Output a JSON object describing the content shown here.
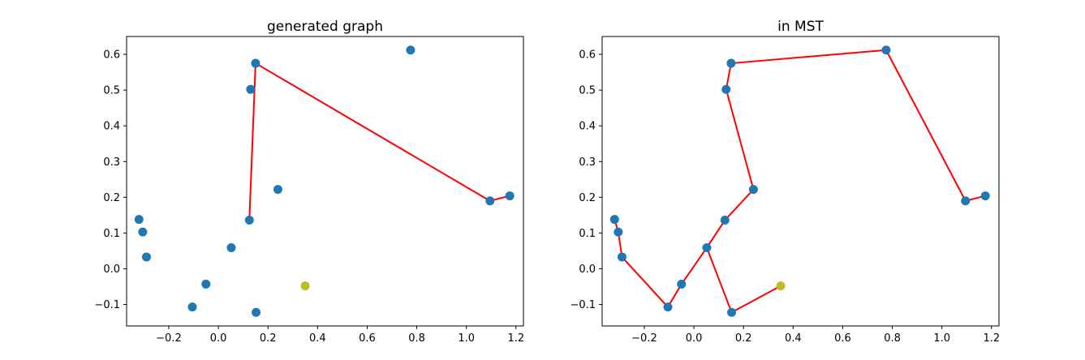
{
  "chart_data": [
    {
      "type": "scatter",
      "title": "generated graph",
      "xlabel": "",
      "ylabel": "",
      "xlim": [
        -0.37,
        1.23
      ],
      "ylim": [
        -0.16,
        0.65
      ],
      "xticks": [
        -0.2,
        0.0,
        0.2,
        0.4,
        0.6,
        0.8,
        1.0,
        1.2
      ],
      "yticks": [
        -0.1,
        0.0,
        0.1,
        0.2,
        0.3,
        0.4,
        0.5,
        0.6
      ],
      "xtick_labels": [
        "−0.2",
        "0.0",
        "0.2",
        "0.4",
        "0.6",
        "0.8",
        "1.0",
        "1.2"
      ],
      "ytick_labels": [
        "−0.1",
        "0.0",
        "0.1",
        "0.2",
        "0.3",
        "0.4",
        "0.5",
        "0.6"
      ],
      "points": [
        {
          "x": 0.15,
          "y": 0.575,
          "color": "#1f77b4"
        },
        {
          "x": 0.13,
          "y": 0.502,
          "color": "#1f77b4"
        },
        {
          "x": 0.775,
          "y": 0.612,
          "color": "#1f77b4"
        },
        {
          "x": 0.24,
          "y": 0.222,
          "color": "#1f77b4"
        },
        {
          "x": 1.095,
          "y": 0.19,
          "color": "#1f77b4"
        },
        {
          "x": 1.175,
          "y": 0.204,
          "color": "#1f77b4"
        },
        {
          "x": 0.125,
          "y": 0.136,
          "color": "#1f77b4"
        },
        {
          "x": -0.32,
          "y": 0.138,
          "color": "#1f77b4"
        },
        {
          "x": -0.305,
          "y": 0.103,
          "color": "#1f77b4"
        },
        {
          "x": -0.29,
          "y": 0.033,
          "color": "#1f77b4"
        },
        {
          "x": 0.052,
          "y": 0.059,
          "color": "#1f77b4"
        },
        {
          "x": -0.05,
          "y": -0.043,
          "color": "#1f77b4"
        },
        {
          "x": -0.105,
          "y": -0.107,
          "color": "#1f77b4"
        },
        {
          "x": 0.152,
          "y": -0.122,
          "color": "#1f77b4"
        },
        {
          "x": 0.35,
          "y": -0.048,
          "color": "#bcbd22"
        }
      ],
      "lines": [
        {
          "color": "#ff0000",
          "x": [
            0.125,
            0.15,
            1.095,
            1.175
          ],
          "y": [
            0.136,
            0.575,
            0.19,
            0.204
          ]
        }
      ]
    },
    {
      "type": "scatter",
      "title": "in MST",
      "xlabel": "",
      "ylabel": "",
      "xlim": [
        -0.37,
        1.23
      ],
      "ylim": [
        -0.16,
        0.65
      ],
      "xticks": [
        -0.2,
        0.0,
        0.2,
        0.4,
        0.6,
        0.8,
        1.0,
        1.2
      ],
      "yticks": [
        -0.1,
        0.0,
        0.1,
        0.2,
        0.3,
        0.4,
        0.5,
        0.6
      ],
      "xtick_labels": [
        "−0.2",
        "0.0",
        "0.2",
        "0.4",
        "0.6",
        "0.8",
        "1.0",
        "1.2"
      ],
      "ytick_labels": [
        "−0.1",
        "0.0",
        "0.1",
        "0.2",
        "0.3",
        "0.4",
        "0.5",
        "0.6"
      ],
      "points": [
        {
          "x": 0.15,
          "y": 0.575,
          "color": "#1f77b4"
        },
        {
          "x": 0.13,
          "y": 0.502,
          "color": "#1f77b4"
        },
        {
          "x": 0.775,
          "y": 0.612,
          "color": "#1f77b4"
        },
        {
          "x": 0.24,
          "y": 0.222,
          "color": "#1f77b4"
        },
        {
          "x": 1.095,
          "y": 0.19,
          "color": "#1f77b4"
        },
        {
          "x": 1.175,
          "y": 0.204,
          "color": "#1f77b4"
        },
        {
          "x": 0.125,
          "y": 0.136,
          "color": "#1f77b4"
        },
        {
          "x": -0.32,
          "y": 0.138,
          "color": "#1f77b4"
        },
        {
          "x": -0.305,
          "y": 0.103,
          "color": "#1f77b4"
        },
        {
          "x": -0.29,
          "y": 0.033,
          "color": "#1f77b4"
        },
        {
          "x": 0.052,
          "y": 0.059,
          "color": "#1f77b4"
        },
        {
          "x": -0.05,
          "y": -0.043,
          "color": "#1f77b4"
        },
        {
          "x": -0.105,
          "y": -0.107,
          "color": "#1f77b4"
        },
        {
          "x": 0.152,
          "y": -0.122,
          "color": "#1f77b4"
        },
        {
          "x": 0.35,
          "y": -0.048,
          "color": "#bcbd22"
        }
      ],
      "lines": [
        {
          "color": "#ff0000",
          "x": [
            1.175,
            1.095,
            0.775,
            0.15,
            0.13,
            0.24,
            0.125,
            0.052,
            -0.05,
            -0.105,
            -0.29,
            -0.305,
            -0.32
          ],
          "y": [
            0.204,
            0.19,
            0.612,
            0.575,
            0.502,
            0.222,
            0.136,
            0.059,
            -0.043,
            -0.107,
            0.033,
            0.103,
            0.138
          ]
        },
        {
          "color": "#ff0000",
          "x": [
            0.052,
            0.152,
            0.35
          ],
          "y": [
            0.059,
            -0.122,
            -0.048
          ]
        }
      ]
    }
  ]
}
